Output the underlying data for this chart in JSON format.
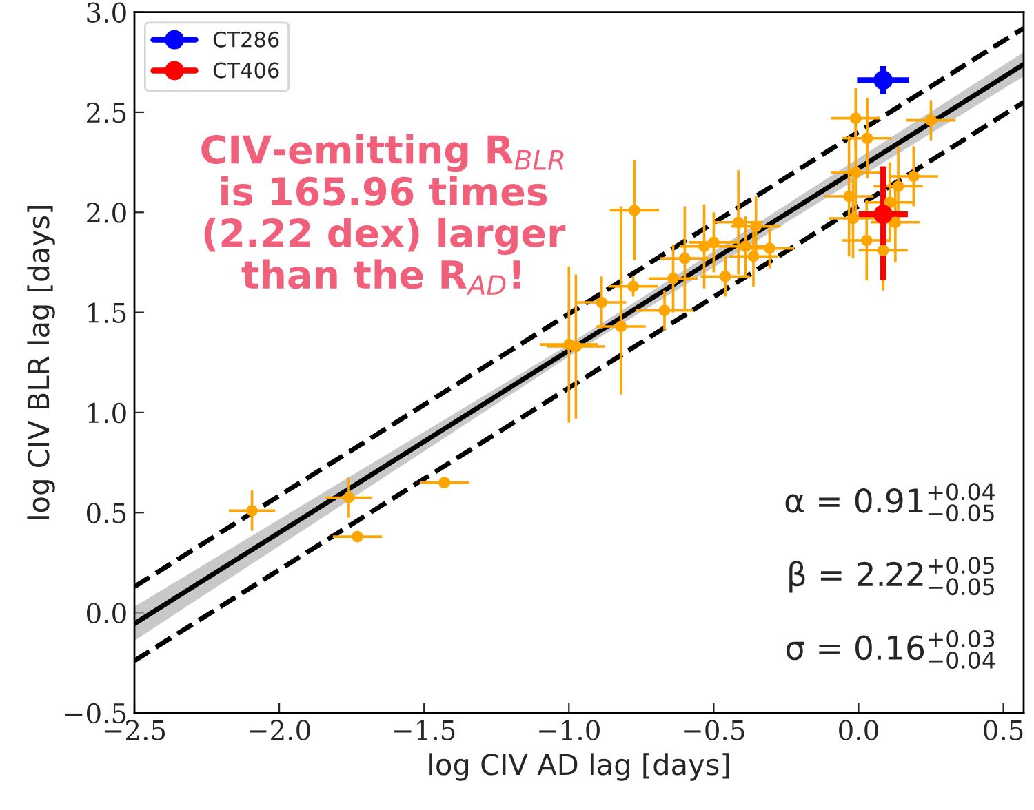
{
  "chart_data": {
    "type": "scatter",
    "xlabel": "log CIV AD lag [days]",
    "ylabel": "log CIV BLR lag [days]",
    "xlim": [
      -2.5,
      0.57
    ],
    "ylim": [
      -0.5,
      3.0
    ],
    "xticks": [
      {
        "value": -2.5,
        "label": "−2.5"
      },
      {
        "value": -2.0,
        "label": "−2.0"
      },
      {
        "value": -1.5,
        "label": "−1.5"
      },
      {
        "value": -1.0,
        "label": "−1.0"
      },
      {
        "value": -0.5,
        "label": "−0.5"
      },
      {
        "value": 0.0,
        "label": "0.0"
      },
      {
        "value": 0.5,
        "label": "0.5"
      }
    ],
    "yticks": [
      {
        "value": -0.5,
        "label": "−0.5"
      },
      {
        "value": 0.0,
        "label": "0.0"
      },
      {
        "value": 0.5,
        "label": "0.5"
      },
      {
        "value": 1.0,
        "label": "1.0"
      },
      {
        "value": 1.5,
        "label": "1.5"
      },
      {
        "value": 2.0,
        "label": "2.0"
      },
      {
        "value": 2.5,
        "label": "2.5"
      },
      {
        "value": 3.0,
        "label": "3.0"
      }
    ],
    "grid": false,
    "legend": "top left",
    "series": [
      {
        "type": "line",
        "color": "#000000",
        "line_style": "solid",
        "x": [
          -2.5,
          -1.0,
          0.57
        ],
        "values": [
          -0.055,
          1.31,
          2.739
        ],
        "lower": [
          -0.14,
          1.28,
          2.68
        ],
        "upper": [
          0.03,
          1.34,
          2.8
        ]
      },
      {
        "type": "line",
        "color": "#000000",
        "line_style": "dashed",
        "x": [
          -2.5,
          0.57
        ],
        "values": [
          0.13,
          2.92
        ]
      },
      {
        "type": "line",
        "color": "#000000",
        "line_style": "dashed",
        "x": [
          -2.5,
          0.57
        ],
        "values": [
          -0.24,
          2.55
        ]
      },
      {
        "color": "#ffa500",
        "marker": "circle",
        "x": [
          -2.094,
          -1.76,
          -1.73,
          -1.43,
          -0.976,
          -1.0,
          -0.887,
          -0.82,
          -0.778,
          -0.774,
          -0.67,
          -0.64,
          -0.6,
          -0.533,
          -0.5,
          -0.46,
          -0.415,
          -0.39,
          -0.363,
          -0.354,
          -0.307,
          -0.033,
          -0.019,
          -0.01,
          0.028,
          0.085,
          0.108,
          0.127,
          0.137,
          0.19,
          -0.01,
          0.03,
          0.25
        ],
        "values": [
          0.51,
          0.575,
          0.38,
          0.65,
          1.33,
          1.34,
          1.55,
          1.43,
          1.63,
          2.01,
          1.51,
          1.67,
          1.77,
          1.83,
          1.85,
          1.68,
          1.95,
          1.83,
          1.78,
          1.93,
          1.82,
          2.08,
          1.97,
          2.2,
          1.86,
          1.81,
          2.05,
          1.95,
          2.13,
          2.18,
          2.47,
          2.37,
          2.46
        ],
        "errors": [
          0.1,
          0.1,
          null,
          null,
          0.36,
          0.39,
          0.13,
          [
            1.09,
            2.03
          ],
          0.05,
          0.25,
          0.1,
          0.17,
          0.26,
          0.21,
          0.15,
          0.1,
          0.26,
          0.15,
          0.15,
          0.15,
          0.1,
          0.3,
          0.2,
          0.25,
          0.2,
          0.2,
          0.2,
          0.2,
          0.2,
          0.15,
          0.15,
          0.2,
          0.1
        ],
        "xerrors": [
          0.08,
          0.08,
          0.085,
          0.085,
          0.1,
          0.1,
          0.085,
          0.085,
          0.085,
          0.085,
          0.1,
          0.085,
          0.085,
          0.085,
          0.085,
          0.085,
          0.085,
          0.085,
          0.085,
          0.085,
          0.085,
          0.085,
          0.085,
          0.085,
          0.085,
          0.085,
          0.085,
          0.085,
          0.085,
          0.085,
          0.085,
          0.085,
          0.085
        ]
      },
      {
        "type": "scatter",
        "name": "CT286",
        "color": "#0000ff",
        "marker": "circle",
        "x": [
          0.085
        ],
        "values": [
          2.66
        ],
        "errors": [
          0.07
        ],
        "xerrors": [
          0.09
        ]
      },
      {
        "type": "scatter",
        "name": "CT406",
        "color": "#ff0000",
        "marker": "circle",
        "x": [
          0.085
        ],
        "values": [
          1.99
        ],
        "errors": [
          [
            1.66,
            2.23
          ]
        ],
        "xerrors": [
          0.085
        ]
      }
    ],
    "annotations": [
      "CIV-emitting R$_{BLR}$\nis 165.96 times\n(2.22 dex) larger\nthan the R$_{AD}$!",
      "α = 0.91$^{+0.04}$$_{−0.05}$",
      "β = 2.22$^{+0.05}$$_{−0.05}$",
      "σ = 0.16$^{+0.03}$$_{−0.04}$"
    ]
  }
}
